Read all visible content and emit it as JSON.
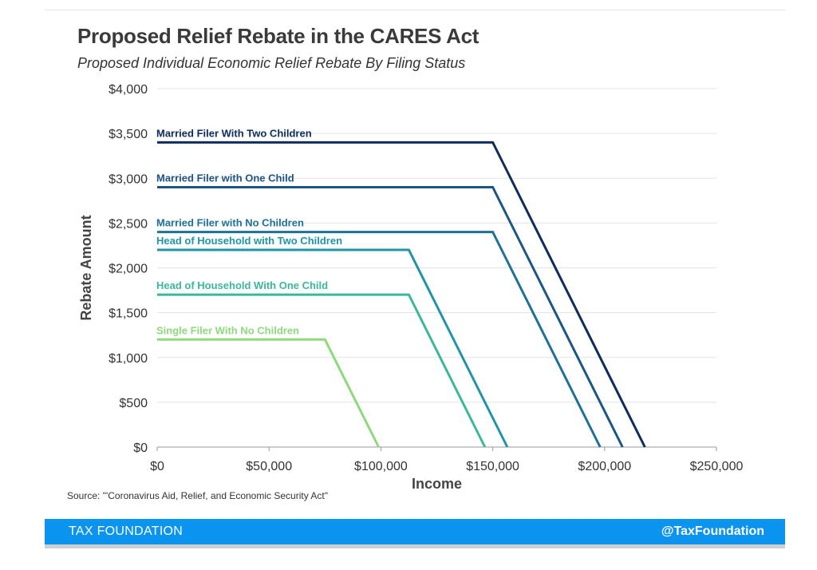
{
  "header": {
    "title": "Proposed Relief Rebate in the CARES Act",
    "subtitle": "Proposed Individual Economic Relief Rebate By Filing Status"
  },
  "source": "Source: \"'Coronavirus Aid, Relief, and Economic Security Act\"",
  "footer": {
    "brand": "TAX FOUNDATION",
    "handle": "@TaxFoundation",
    "color": "#0a94f0"
  },
  "chart_data": {
    "type": "line",
    "xlabel": "Income",
    "ylabel": "Rebate Amount",
    "xlim": [
      0,
      250000
    ],
    "ylim": [
      0,
      4000
    ],
    "x_ticks": [
      0,
      50000,
      100000,
      150000,
      200000,
      250000
    ],
    "x_tick_labels": [
      "$0",
      "$50,000",
      "$100,000",
      "$150,000",
      "$200,000",
      "$250,000"
    ],
    "y_ticks": [
      0,
      500,
      1000,
      1500,
      2000,
      2500,
      3000,
      3500,
      4000
    ],
    "y_tick_labels": [
      "$0",
      "$500",
      "$1,000",
      "$1,500",
      "$2,000",
      "$2,500",
      "$3,000",
      "$3,500",
      "$4,000"
    ],
    "grid": "horizontal",
    "series": [
      {
        "name": "Married Filer With Two Children",
        "color": "#0f2d5c",
        "points": [
          [
            0,
            3400
          ],
          [
            150000,
            3400
          ],
          [
            218000,
            0
          ]
        ]
      },
      {
        "name": "Married Filer with One Child",
        "color": "#1d5585",
        "points": [
          [
            0,
            2900
          ],
          [
            150000,
            2900
          ],
          [
            208000,
            0
          ]
        ]
      },
      {
        "name": "Married Filer with No Children",
        "color": "#1f7196",
        "points": [
          [
            0,
            2400
          ],
          [
            150000,
            2400
          ],
          [
            198000,
            0
          ]
        ]
      },
      {
        "name": "Head of Household with Two Children",
        "color": "#1f95a5",
        "points": [
          [
            0,
            2200
          ],
          [
            112500,
            2200
          ],
          [
            156500,
            0
          ]
        ]
      },
      {
        "name": "Head of Household With One Child",
        "color": "#3ab89a",
        "points": [
          [
            0,
            1700
          ],
          [
            112500,
            1700
          ],
          [
            146500,
            0
          ]
        ]
      },
      {
        "name": "Single Filer With No Children",
        "color": "#8fd97c",
        "points": [
          [
            0,
            1200
          ],
          [
            75000,
            1200
          ],
          [
            99000,
            0
          ]
        ]
      }
    ]
  }
}
